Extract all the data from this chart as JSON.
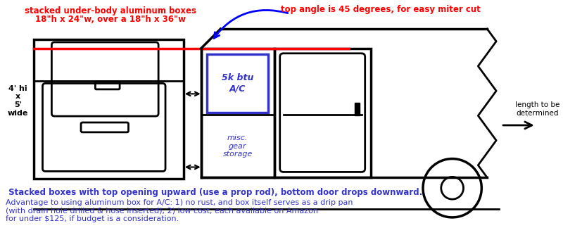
{
  "bg_color": "#ffffff",
  "title_text1": "stacked under-body aluminum boxes",
  "title_text2": "18\"h x 24\"w, over a 18\"h x 36\"w",
  "top_angle_text": "top angle is 45 degrees, for easy miter cut",
  "label_4hi": "4' hi\nx\n5'\nwide",
  "ac_label": "5k btu\nA/C",
  "storage_label": "misc.\ngear\nstorage",
  "length_label": "length to be\ndetermined",
  "caption1": " Stacked boxes with top opening upward (use a prop rod), bottom door drops downward.",
  "caption2": "Advantage to using aluminum box for A/C: 1) no rust, and box itself serves as a drip pan\n(with drain hole drilled & hose inserted), 2) low cost, each available on Amazon\nfor under $125, if budget is a consideration.",
  "red_color": "#ff0000",
  "blue_color": "#0000ff",
  "blue_purple": "#3333cc",
  "black": "#000000"
}
